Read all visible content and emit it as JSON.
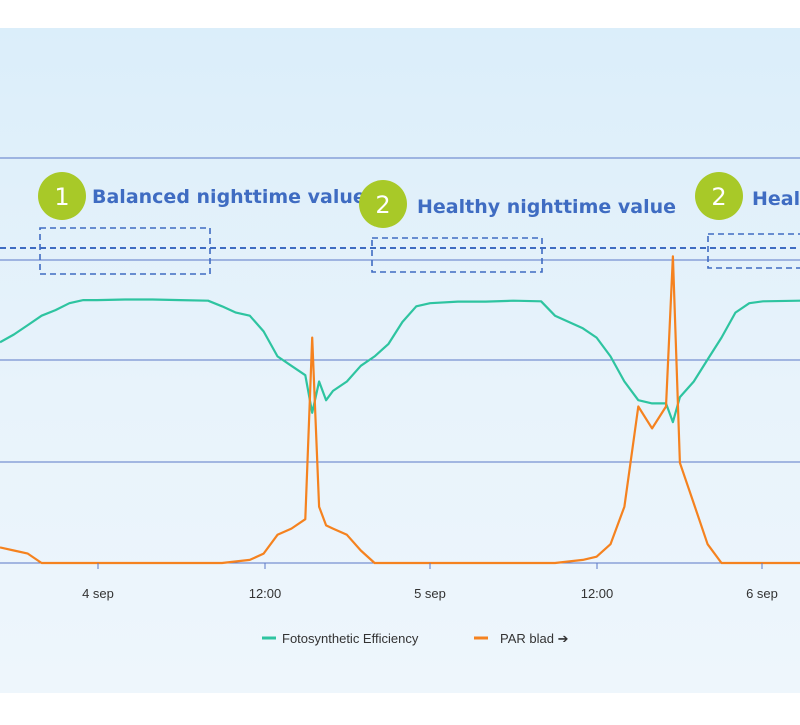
{
  "chart_data": {
    "type": "line",
    "x_tick_labels": [
      "4 sep",
      "12:00",
      "5 sep",
      "12:00",
      "6 sep"
    ],
    "x_range": [
      "2023-09-03T15:00",
      "2023-09-06T00:40"
    ],
    "grid": true,
    "legend_position": "bottom-center",
    "series": [
      {
        "name": "Fotosynthetic Efficiency",
        "color": "#2ec4a0",
        "points": [
          [
            "2023-09-03T15:00",
            0.705
          ],
          [
            "2023-09-03T16:00",
            0.73
          ],
          [
            "2023-09-03T17:00",
            0.76
          ],
          [
            "2023-09-03T18:00",
            0.79
          ],
          [
            "2023-09-03T19:00",
            0.808
          ],
          [
            "2023-09-03T20:00",
            0.83
          ],
          [
            "2023-09-03T21:00",
            0.84
          ],
          [
            "2023-09-03T22:00",
            0.84
          ],
          [
            "2023-09-04T00:00",
            0.842
          ],
          [
            "2023-09-04T02:00",
            0.842
          ],
          [
            "2023-09-04T04:00",
            0.84
          ],
          [
            "2023-09-04T06:00",
            0.838
          ],
          [
            "2023-09-04T07:00",
            0.82
          ],
          [
            "2023-09-04T08:00",
            0.8
          ],
          [
            "2023-09-04T09:00",
            0.79
          ],
          [
            "2023-09-04T10:00",
            0.74
          ],
          [
            "2023-09-04T11:00",
            0.66
          ],
          [
            "2023-09-04T12:00",
            0.63
          ],
          [
            "2023-09-04T13:00",
            0.6
          ],
          [
            "2023-09-04T13:30",
            0.48
          ],
          [
            "2023-09-04T14:00",
            0.58
          ],
          [
            "2023-09-04T14:30",
            0.52
          ],
          [
            "2023-09-04T15:00",
            0.55
          ],
          [
            "2023-09-04T16:00",
            0.58
          ],
          [
            "2023-09-04T17:00",
            0.63
          ],
          [
            "2023-09-04T18:00",
            0.66
          ],
          [
            "2023-09-04T19:00",
            0.7
          ],
          [
            "2023-09-04T20:00",
            0.77
          ],
          [
            "2023-09-04T21:00",
            0.82
          ],
          [
            "2023-09-04T22:00",
            0.83
          ],
          [
            "2023-09-05T00:00",
            0.835
          ],
          [
            "2023-09-05T02:00",
            0.835
          ],
          [
            "2023-09-05T04:00",
            0.838
          ],
          [
            "2023-09-05T06:00",
            0.836
          ],
          [
            "2023-09-05T07:00",
            0.79
          ],
          [
            "2023-09-05T08:00",
            0.77
          ],
          [
            "2023-09-05T09:00",
            0.75
          ],
          [
            "2023-09-05T10:00",
            0.72
          ],
          [
            "2023-09-05T11:00",
            0.66
          ],
          [
            "2023-09-05T12:00",
            0.58
          ],
          [
            "2023-09-05T13:00",
            0.52
          ],
          [
            "2023-09-05T14:00",
            0.51
          ],
          [
            "2023-09-05T15:00",
            0.51
          ],
          [
            "2023-09-05T15:30",
            0.45
          ],
          [
            "2023-09-05T16:00",
            0.53
          ],
          [
            "2023-09-05T17:00",
            0.58
          ],
          [
            "2023-09-05T18:00",
            0.65
          ],
          [
            "2023-09-05T19:00",
            0.72
          ],
          [
            "2023-09-05T20:00",
            0.8
          ],
          [
            "2023-09-05T21:00",
            0.83
          ],
          [
            "2023-09-05T22:00",
            0.836
          ],
          [
            "2023-09-06T00:40",
            0.838
          ]
        ]
      },
      {
        "name": "PAR blad ➔",
        "color": "#f5821f",
        "points": [
          [
            "2023-09-03T15:00",
            0.05
          ],
          [
            "2023-09-03T16:00",
            0.04
          ],
          [
            "2023-09-03T17:00",
            0.03
          ],
          [
            "2023-09-03T18:00",
            0.0
          ],
          [
            "2023-09-04T07:00",
            0.0
          ],
          [
            "2023-09-04T09:00",
            0.01
          ],
          [
            "2023-09-04T10:00",
            0.03
          ],
          [
            "2023-09-04T11:00",
            0.09
          ],
          [
            "2023-09-04T12:00",
            0.11
          ],
          [
            "2023-09-04T13:00",
            0.14
          ],
          [
            "2023-09-04T13:30",
            0.72
          ],
          [
            "2023-09-04T14:00",
            0.18
          ],
          [
            "2023-09-04T14:30",
            0.12
          ],
          [
            "2023-09-04T15:00",
            0.11
          ],
          [
            "2023-09-04T16:00",
            0.09
          ],
          [
            "2023-09-04T17:00",
            0.04
          ],
          [
            "2023-09-04T18:00",
            0.0
          ],
          [
            "2023-09-05T07:00",
            0.0
          ],
          [
            "2023-09-05T09:00",
            0.01
          ],
          [
            "2023-09-05T10:00",
            0.02
          ],
          [
            "2023-09-05T11:00",
            0.06
          ],
          [
            "2023-09-05T12:00",
            0.18
          ],
          [
            "2023-09-05T13:00",
            0.5
          ],
          [
            "2023-09-05T14:00",
            0.43
          ],
          [
            "2023-09-05T15:00",
            0.5
          ],
          [
            "2023-09-05T15:30",
            0.98
          ],
          [
            "2023-09-05T16:00",
            0.32
          ],
          [
            "2023-09-05T17:00",
            0.19
          ],
          [
            "2023-09-05T18:00",
            0.06
          ],
          [
            "2023-09-05T19:00",
            0.0
          ],
          [
            "2023-09-06T00:40",
            0.0
          ]
        ]
      }
    ],
    "annotations": [
      {
        "number": "1",
        "text": "Balanced nighttime value"
      },
      {
        "number": "2",
        "text": "Healthy nighttime value"
      },
      {
        "number": "2",
        "text": "Heal"
      }
    ]
  }
}
